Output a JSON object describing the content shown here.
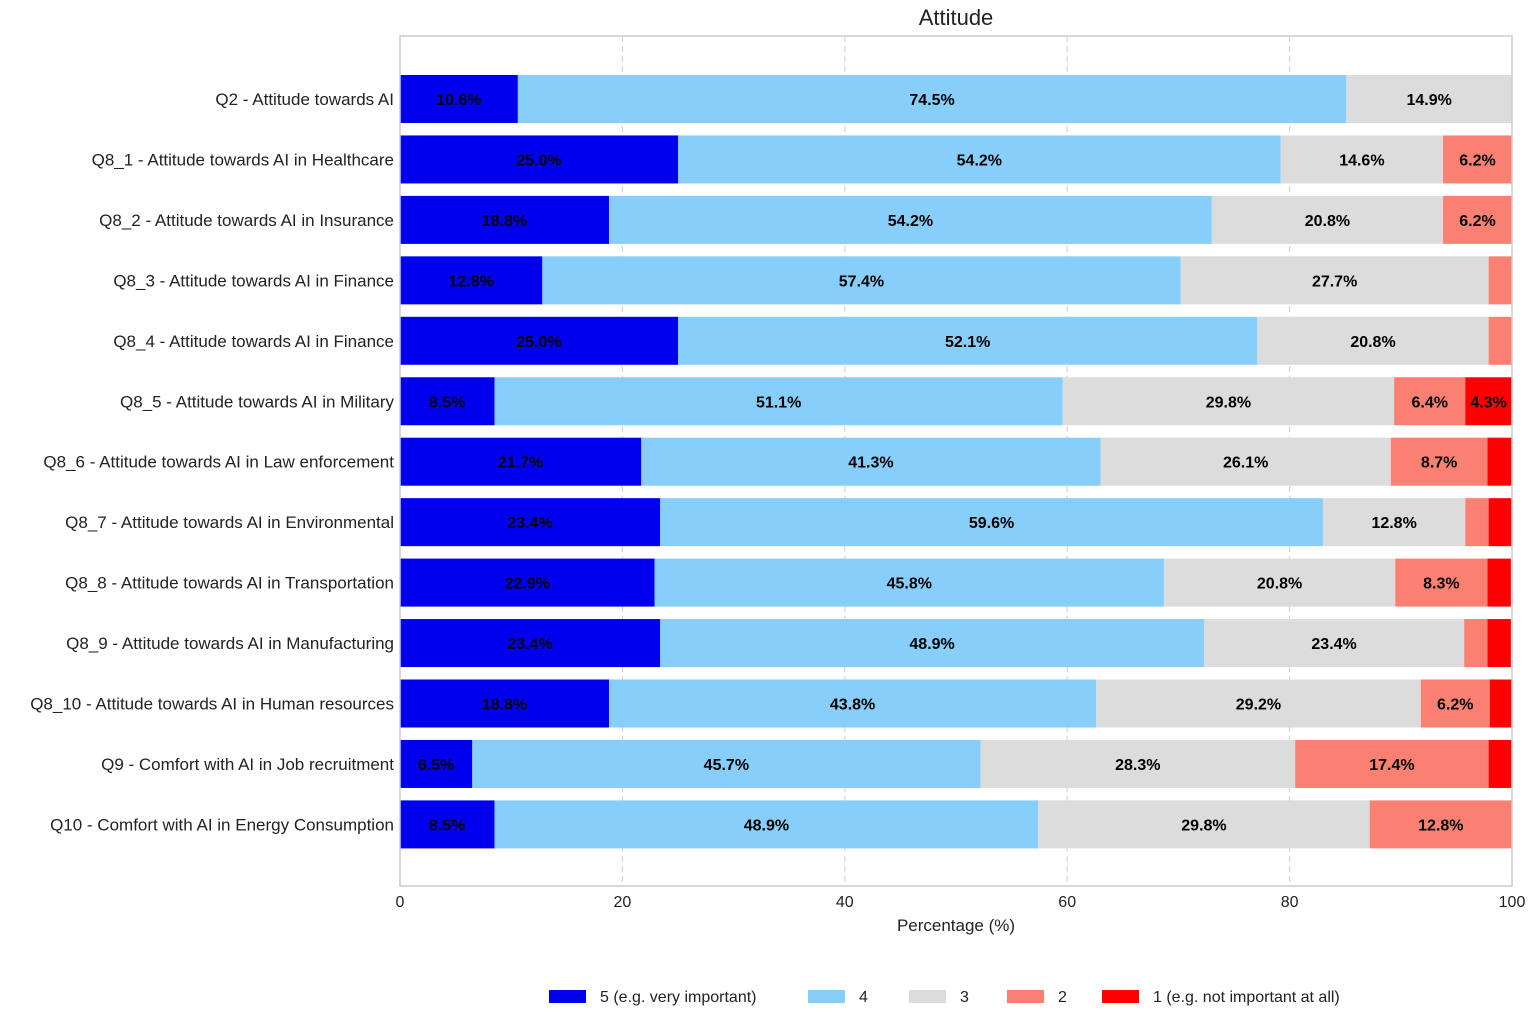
{
  "chart_data": {
    "type": "bar",
    "orientation": "horizontal",
    "stacked": true,
    "title": "Attitude",
    "xlabel": "Percentage (%)",
    "ylabel": "",
    "xlim": [
      0,
      100
    ],
    "xticks": [
      0,
      20,
      40,
      60,
      80,
      100
    ],
    "grid": "vertical dashed",
    "legend_placement": "bottom-center",
    "categories": [
      "Q2 - Attitude towards AI",
      "Q8_1 - Attitude towards AI in Healthcare",
      "Q8_2 - Attitude towards AI in Insurance",
      "Q8_3 - Attitude towards AI in Finance",
      "Q8_4 - Attitude towards AI in Finance",
      "Q8_5 - Attitude towards AI in Military",
      "Q8_6 - Attitude towards AI in Law enforcement",
      "Q8_7 - Attitude towards AI in Environmental",
      "Q8_8 - Attitude towards AI in Transportation",
      "Q8_9 - Attitude towards AI in Manufacturing",
      "Q8_10 - Attitude towards AI in Human resources",
      "Q9 - Comfort with AI in Job recruitment",
      "Q10 - Comfort with AI in Energy Consumption"
    ],
    "series": [
      {
        "name": "5 (e.g. very important)",
        "color": "#0000ee",
        "values": [
          10.6,
          25.0,
          18.8,
          12.8,
          25.0,
          8.5,
          21.7,
          23.4,
          22.9,
          23.4,
          18.8,
          6.5,
          8.5
        ]
      },
      {
        "name": "4",
        "color": "#87cefa",
        "values": [
          74.5,
          54.2,
          54.2,
          57.4,
          52.1,
          51.1,
          41.3,
          59.6,
          45.8,
          48.9,
          43.8,
          45.7,
          48.9
        ]
      },
      {
        "name": "3",
        "color": "#dcdcdc",
        "values": [
          14.9,
          14.6,
          20.8,
          27.7,
          20.8,
          29.8,
          26.1,
          12.8,
          20.8,
          23.4,
          29.2,
          28.3,
          29.8
        ]
      },
      {
        "name": "2",
        "color": "#fa8072",
        "values": [
          0,
          6.2,
          6.2,
          2.1,
          2.1,
          6.4,
          8.7,
          2.1,
          8.3,
          2.1,
          6.2,
          17.4,
          12.8
        ]
      },
      {
        "name": "1 (e.g. not important at all)",
        "color": "#ff0000",
        "values": [
          0,
          0,
          0,
          0,
          0,
          4.3,
          2.2,
          2.1,
          2.1,
          2.1,
          2.1,
          2.2,
          0
        ]
      }
    ],
    "label_threshold": 3
  }
}
